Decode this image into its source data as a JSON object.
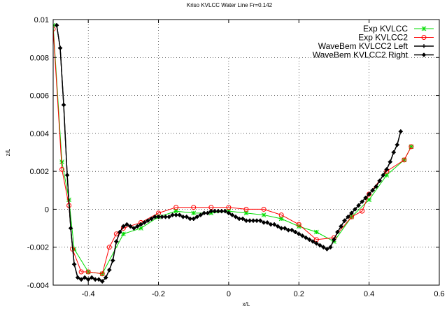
{
  "chart_data": {
    "type": "line",
    "title": "Kriso KVLCC Water Line Fr=0.142",
    "xlabel": "x/L",
    "ylabel": "z/L",
    "xlim": [
      -0.5,
      0.6
    ],
    "ylim": [
      -0.004,
      0.01
    ],
    "xticks": [
      -0.4,
      -0.2,
      0,
      0.2,
      0.4,
      0.6
    ],
    "xtick_labels": [
      "-0.4",
      "-0.2",
      "0",
      "0.2",
      "0.4",
      "0.6"
    ],
    "yticks": [
      -0.004,
      -0.002,
      0,
      0.002,
      0.004,
      0.006,
      0.008,
      0.01
    ],
    "ytick_labels": [
      "-0.004",
      "-0.002",
      "0",
      "0.002",
      "0.004",
      "0.006",
      "0.008",
      "0.01"
    ],
    "grid": true,
    "legend_position": "top-right",
    "series": [
      {
        "name": "Exp KVLCC",
        "color": "#00dd00",
        "marker": "star",
        "x": [
          -0.5,
          -0.475,
          -0.455,
          -0.44,
          -0.4,
          -0.36,
          -0.3,
          -0.25,
          -0.2,
          -0.15,
          -0.1,
          -0.05,
          0,
          0.05,
          0.1,
          0.15,
          0.2,
          0.25,
          0.3,
          0.35,
          0.4,
          0.45,
          0.5,
          0.52
        ],
        "y": [
          0.0097,
          0.0025,
          0.0005,
          -0.0021,
          -0.0033,
          -0.0034,
          -0.0013,
          -0.001,
          -0.0004,
          -0.0001,
          -0.0002,
          -0.0002,
          -0.0001,
          -0.0002,
          -0.0003,
          -0.0005,
          -0.0009,
          -0.0012,
          -0.0017,
          -0.0004,
          0.0005,
          0.0018,
          0.0026,
          0.0033
        ]
      },
      {
        "name": "Exp KVLCC2",
        "color": "#ff0000",
        "marker": "circle",
        "x": [
          -0.5,
          -0.475,
          -0.455,
          -0.445,
          -0.42,
          -0.4,
          -0.36,
          -0.34,
          -0.32,
          -0.3,
          -0.25,
          -0.2,
          -0.15,
          -0.1,
          -0.05,
          0,
          0.05,
          0.1,
          0.15,
          0.2,
          0.25,
          0.3,
          0.35,
          0.38,
          0.4,
          0.45,
          0.5,
          0.52
        ],
        "y": [
          0.0095,
          0.0021,
          0.0002,
          -0.0021,
          -0.0033,
          -0.0033,
          -0.0034,
          -0.002,
          -0.0013,
          -0.001,
          -0.0007,
          -0.0002,
          0.0001,
          0.0001,
          0.0001,
          0.0001,
          0.0,
          0.0,
          -0.0003,
          -0.0008,
          -0.0016,
          -0.0015,
          -0.0004,
          -0.0001,
          0.0008,
          0.002,
          0.0026,
          0.0033
        ]
      },
      {
        "name": "WaveBem KVLCC2 Left",
        "color": "#000000",
        "marker": "cross",
        "x": [
          -0.49,
          -0.48,
          -0.47,
          -0.46,
          -0.45,
          -0.44,
          -0.43,
          -0.42,
          -0.41,
          -0.4,
          -0.39,
          -0.38,
          -0.37,
          -0.36,
          -0.35,
          -0.34,
          -0.33,
          -0.32,
          -0.31,
          -0.3,
          -0.29,
          -0.28,
          -0.27,
          -0.26,
          -0.25,
          -0.24,
          -0.23,
          -0.22,
          -0.21,
          -0.2,
          -0.19,
          -0.18,
          -0.17,
          -0.16,
          -0.15,
          -0.14,
          -0.13,
          -0.12,
          -0.11,
          -0.1,
          -0.09,
          -0.08,
          -0.07,
          -0.06,
          -0.05,
          -0.04,
          -0.03,
          -0.02,
          -0.01,
          0,
          0.01,
          0.02,
          0.03,
          0.04,
          0.05,
          0.06,
          0.07,
          0.08,
          0.09,
          0.1,
          0.11,
          0.12,
          0.13,
          0.14,
          0.15,
          0.16,
          0.17,
          0.18,
          0.19,
          0.2,
          0.21,
          0.22,
          0.23,
          0.24,
          0.25,
          0.26,
          0.27,
          0.28,
          0.29,
          0.3,
          0.31,
          0.32,
          0.33,
          0.34,
          0.35,
          0.36,
          0.37,
          0.38,
          0.39,
          0.4,
          0.41,
          0.42,
          0.43,
          0.44,
          0.45,
          0.46,
          0.47,
          0.48,
          0.49
        ],
        "y": [
          0.0097,
          0.0085,
          0.0055,
          0.0018,
          -0.001,
          -0.0029,
          -0.0036,
          -0.0037,
          -0.0036,
          -0.0037,
          -0.0036,
          -0.0037,
          -0.0037,
          -0.0038,
          -0.0036,
          -0.0032,
          -0.0027,
          -0.0017,
          -0.0012,
          -0.0009,
          -0.0008,
          -0.0009,
          -0.001,
          -0.0009,
          -0.0008,
          -0.0007,
          -0.0006,
          -0.0005,
          -0.0004,
          -0.0004,
          -0.0004,
          -0.0004,
          -0.0004,
          -0.0003,
          -0.0003,
          -0.0003,
          -0.0004,
          -0.0004,
          -0.0005,
          -0.0005,
          -0.0004,
          -0.0003,
          -0.0002,
          -0.0002,
          -0.0001,
          -0.0001,
          -0.0001,
          -0.0001,
          -0.0001,
          -0.0002,
          -0.0003,
          -0.0004,
          -0.0005,
          -0.0005,
          -0.0006,
          -0.0006,
          -0.0006,
          -0.0006,
          -0.0006,
          -0.0007,
          -0.0007,
          -0.0008,
          -0.0008,
          -0.0009,
          -0.001,
          -0.001,
          -0.0011,
          -0.0011,
          -0.0012,
          -0.0013,
          -0.0014,
          -0.0015,
          -0.0016,
          -0.0017,
          -0.0018,
          -0.0019,
          -0.002,
          -0.0021,
          -0.002,
          -0.0016,
          -0.0012,
          -0.0009,
          -0.0006,
          -0.0004,
          -0.0002,
          0.0,
          0.0002,
          0.0004,
          0.0006,
          0.0008,
          0.001,
          0.0012,
          0.0015,
          0.0018,
          0.0021,
          0.0025,
          0.003,
          0.0034,
          0.0041
        ]
      },
      {
        "name": "WaveBem KVLCC2 Right",
        "color": "#000000",
        "marker": "diamond",
        "x": [
          -0.49,
          -0.48,
          -0.47,
          -0.46,
          -0.45,
          -0.44,
          -0.43,
          -0.42,
          -0.41,
          -0.4,
          -0.39,
          -0.38,
          -0.37,
          -0.36,
          -0.35,
          -0.34,
          -0.33,
          -0.32,
          -0.31,
          -0.3,
          -0.29,
          -0.28,
          -0.27,
          -0.26,
          -0.25,
          -0.24,
          -0.23,
          -0.22,
          -0.21,
          -0.2,
          -0.19,
          -0.18,
          -0.17,
          -0.16,
          -0.15,
          -0.14,
          -0.13,
          -0.12,
          -0.11,
          -0.1,
          -0.09,
          -0.08,
          -0.07,
          -0.06,
          -0.05,
          -0.04,
          -0.03,
          -0.02,
          -0.01,
          0,
          0.01,
          0.02,
          0.03,
          0.04,
          0.05,
          0.06,
          0.07,
          0.08,
          0.09,
          0.1,
          0.11,
          0.12,
          0.13,
          0.14,
          0.15,
          0.16,
          0.17,
          0.18,
          0.19,
          0.2,
          0.21,
          0.22,
          0.23,
          0.24,
          0.25,
          0.26,
          0.27,
          0.28,
          0.29,
          0.3,
          0.31,
          0.32,
          0.33,
          0.34,
          0.35,
          0.36,
          0.37,
          0.38,
          0.39,
          0.4,
          0.41,
          0.42,
          0.43,
          0.44,
          0.45,
          0.46,
          0.47,
          0.48,
          0.49
        ],
        "y": [
          0.0097,
          0.0085,
          0.0055,
          0.0018,
          -0.001,
          -0.0029,
          -0.0036,
          -0.0037,
          -0.0036,
          -0.0037,
          -0.0036,
          -0.0037,
          -0.0037,
          -0.0038,
          -0.0036,
          -0.0032,
          -0.0027,
          -0.0017,
          -0.0012,
          -0.0009,
          -0.0008,
          -0.0009,
          -0.001,
          -0.0009,
          -0.0008,
          -0.0007,
          -0.0006,
          -0.0005,
          -0.0004,
          -0.0004,
          -0.0004,
          -0.0004,
          -0.0004,
          -0.0003,
          -0.0003,
          -0.0003,
          -0.0004,
          -0.0004,
          -0.0005,
          -0.0005,
          -0.0004,
          -0.0003,
          -0.0002,
          -0.0002,
          -0.0001,
          -0.0001,
          -0.0001,
          -0.0001,
          -0.0001,
          -0.0002,
          -0.0003,
          -0.0004,
          -0.0005,
          -0.0005,
          -0.0006,
          -0.0006,
          -0.0006,
          -0.0006,
          -0.0006,
          -0.0007,
          -0.0007,
          -0.0008,
          -0.0008,
          -0.0009,
          -0.001,
          -0.001,
          -0.0011,
          -0.0011,
          -0.0012,
          -0.0013,
          -0.0014,
          -0.0015,
          -0.0016,
          -0.0017,
          -0.0018,
          -0.0019,
          -0.002,
          -0.0021,
          -0.002,
          -0.0016,
          -0.0012,
          -0.0009,
          -0.0006,
          -0.0004,
          -0.0002,
          0.0,
          0.0002,
          0.0004,
          0.0006,
          0.0008,
          0.001,
          0.0012,
          0.0015,
          0.0018,
          0.0021,
          0.0025,
          0.003,
          0.0034,
          0.0041
        ]
      }
    ]
  }
}
